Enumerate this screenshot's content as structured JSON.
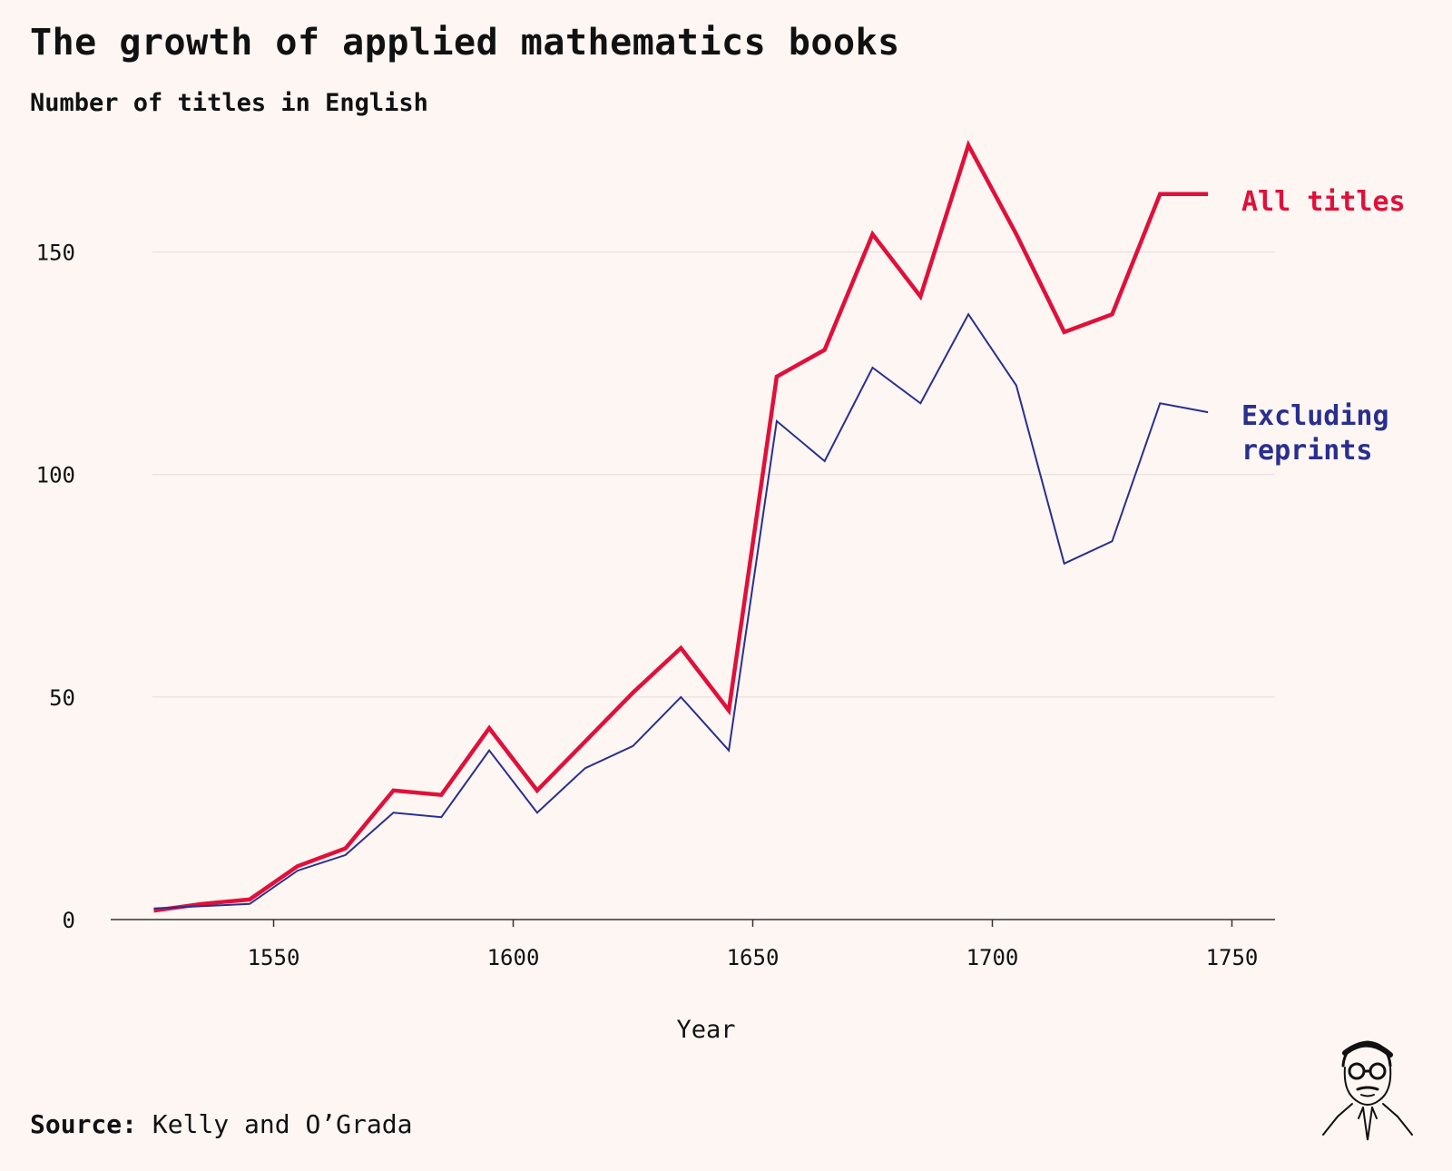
{
  "title": "The growth of applied mathematics books",
  "subtitle": "Number of titles in English",
  "source": {
    "label": "Source:",
    "text": "Kelly and O’Grada"
  },
  "colors": {
    "background": "#fdf6f3",
    "all_titles": "#e0103a",
    "excluding_reprints": "#2a2f8f",
    "grid": "#e4dcd8",
    "axis": "#333333"
  },
  "chart_data": {
    "type": "line",
    "xlabel": "Year",
    "ylabel": "",
    "xlim": [
      1516,
      1759
    ],
    "ylim": [
      0,
      175
    ],
    "x_ticks": [
      1550,
      1600,
      1650,
      1700,
      1750
    ],
    "y_ticks": [
      0,
      50,
      100,
      150
    ],
    "grid": true,
    "series": [
      {
        "name": "All titles",
        "color": "#e0103a",
        "x": [
          1525,
          1535,
          1545,
          1555,
          1565,
          1575,
          1585,
          1595,
          1605,
          1615,
          1625,
          1635,
          1645,
          1655,
          1665,
          1675,
          1685,
          1695,
          1705,
          1715,
          1725,
          1735,
          1745
        ],
        "y": [
          2,
          3.5,
          4.5,
          12,
          16,
          29,
          28,
          43,
          29,
          40,
          51,
          61,
          47,
          122,
          128,
          154,
          140,
          174,
          154,
          132,
          136,
          163,
          163
        ]
      },
      {
        "name": "Excluding reprints",
        "color": "#2a2f8f",
        "x": [
          1525,
          1535,
          1545,
          1555,
          1565,
          1575,
          1585,
          1595,
          1605,
          1615,
          1625,
          1635,
          1645,
          1655,
          1665,
          1675,
          1685,
          1695,
          1705,
          1715,
          1725,
          1735,
          1745
        ],
        "y": [
          2.5,
          3,
          3.5,
          11,
          14.5,
          24,
          23,
          38,
          24,
          34,
          39,
          50,
          38,
          112,
          103,
          124,
          116,
          136,
          120,
          80,
          85,
          116,
          114
        ]
      }
    ],
    "series_labels": [
      {
        "lines": [
          "All titles"
        ],
        "color": "#e0103a"
      },
      {
        "lines": [
          "Excluding",
          "reprints"
        ],
        "color": "#2a2f8f"
      }
    ]
  }
}
